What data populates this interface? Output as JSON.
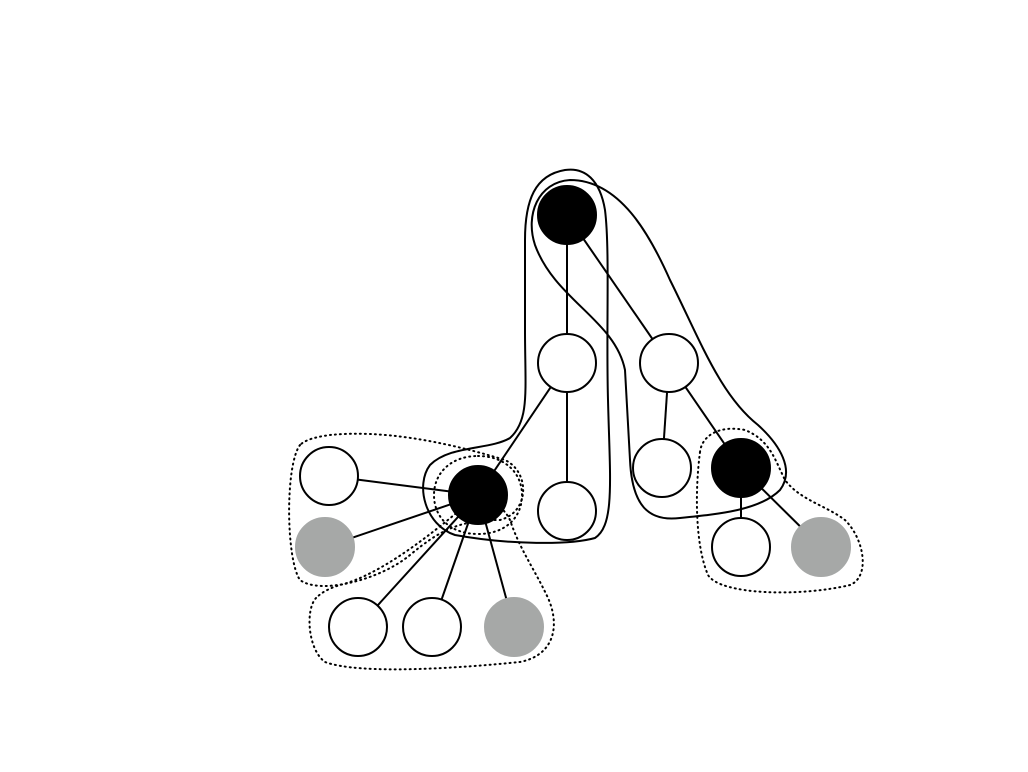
{
  "diagram": {
    "type": "tree-with-regions",
    "colors": {
      "black": "#000000",
      "white": "#ffffff",
      "gray": "#a6a8a7",
      "stroke": "#000000"
    },
    "nodes": [
      {
        "id": "n1",
        "fill": "black"
      },
      {
        "id": "n2",
        "fill": "white"
      },
      {
        "id": "n3",
        "fill": "white"
      },
      {
        "id": "n4",
        "fill": "black"
      },
      {
        "id": "n5",
        "fill": "white"
      },
      {
        "id": "n6",
        "fill": "white"
      },
      {
        "id": "n7",
        "fill": "black"
      },
      {
        "id": "n8",
        "fill": "white"
      },
      {
        "id": "n9",
        "fill": "gray"
      },
      {
        "id": "n10",
        "fill": "white"
      },
      {
        "id": "n11",
        "fill": "white"
      },
      {
        "id": "n12",
        "fill": "gray"
      },
      {
        "id": "n13",
        "fill": "white"
      },
      {
        "id": "n14",
        "fill": "gray"
      }
    ],
    "edges": [
      [
        "n1",
        "n2"
      ],
      [
        "n1",
        "n3"
      ],
      [
        "n2",
        "n4"
      ],
      [
        "n2",
        "n5"
      ],
      [
        "n3",
        "n6"
      ],
      [
        "n3",
        "n7"
      ],
      [
        "n4",
        "n8"
      ],
      [
        "n4",
        "n9"
      ],
      [
        "n4",
        "n10"
      ],
      [
        "n4",
        "n11"
      ],
      [
        "n4",
        "n12"
      ],
      [
        "n7",
        "n13"
      ],
      [
        "n7",
        "n14"
      ]
    ],
    "regions": [
      {
        "id": "r1",
        "style": "solid"
      },
      {
        "id": "r2",
        "style": "solid"
      },
      {
        "id": "r3",
        "style": "dotted"
      },
      {
        "id": "r4",
        "style": "dotted"
      },
      {
        "id": "r5",
        "style": "dotted"
      },
      {
        "id": "r6",
        "style": "dotted"
      }
    ]
  }
}
